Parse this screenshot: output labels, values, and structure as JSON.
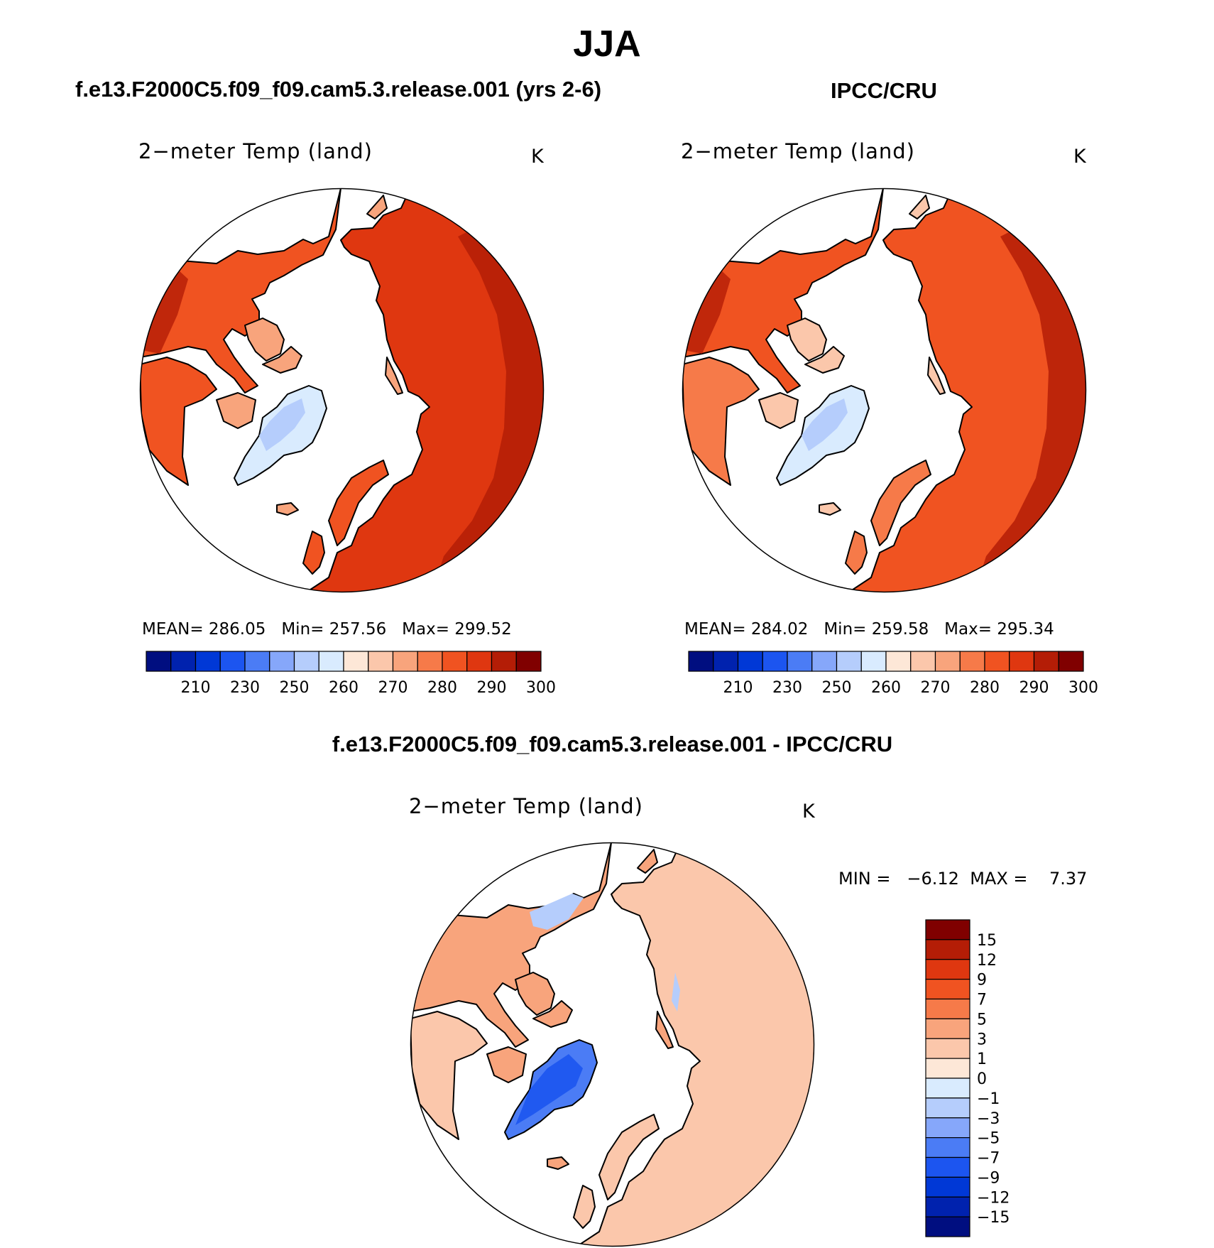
{
  "figure": {
    "title": "JJA"
  },
  "colors": {
    "abs_levels": [
      "#000e80",
      "#0022ae",
      "#0038d6",
      "#1c55f0",
      "#4b7cf5",
      "#86a7fa",
      "#b5cdfc",
      "#d9ebfe",
      "#fde7d7",
      "#fbc7ab",
      "#f8a47c",
      "#f67a49",
      "#f05321",
      "#df3710",
      "#b41d06",
      "#800000"
    ],
    "diff_levels": [
      "#000e80",
      "#0022ae",
      "#0038d6",
      "#1c55f0",
      "#4b7cf5",
      "#86a7fa",
      "#b5cdfc",
      "#d9ebfe",
      "#fde7d7",
      "#fbc7ab",
      "#f8a47c",
      "#f67a49",
      "#f05321",
      "#df3710",
      "#b41d06",
      "#800000"
    ],
    "coast": "#000000"
  },
  "panels": [
    {
      "case": "f.e13.F2000C5.f09_f09.cam5.3.release.001 (yrs 2-6)",
      "variable": "2−meter Temp (land)",
      "units": "K",
      "stats": {
        "mean_label": "MEAN=",
        "mean": "286.05",
        "min_label": "Min=",
        "min": "257.56",
        "max_label": "Max=",
        "max": "299.52"
      },
      "colorbar": {
        "ticks": [
          "210",
          "230",
          "250",
          "260",
          "270",
          "280",
          "290",
          "300"
        ]
      }
    },
    {
      "case": "IPCC/CRU",
      "variable": "2−meter Temp (land)",
      "units": "K",
      "stats": {
        "mean_label": "MEAN=",
        "mean": "284.02",
        "min_label": "Min=",
        "min": "259.58",
        "max_label": "Max=",
        "max": "295.34"
      },
      "colorbar": {
        "ticks": [
          "210",
          "230",
          "250",
          "260",
          "270",
          "280",
          "290",
          "300"
        ]
      }
    },
    {
      "case": "f.e13.F2000C5.f09_f09.cam5.3.release.001 - IPCC/CRU",
      "variable": "2−meter Temp (land)",
      "units": "K",
      "stats": {
        "min_label": "MIN =",
        "min": "−6.12",
        "max_label": "MAX =",
        "max": "7.37"
      },
      "colorbar": {
        "ticks": [
          "15",
          "12",
          "9",
          "7",
          "5",
          "3",
          "1",
          "0",
          "−1",
          "−3",
          "−5",
          "−7",
          "−9",
          "−12",
          "−15"
        ]
      }
    }
  ],
  "map_data": {
    "projection": "north polar stereographic",
    "season": "JJA",
    "field": "2-meter temperature over land",
    "color_level_index": {
      "model": {
        "europe_siberia": 13,
        "north_america_south": 12,
        "boreal": 12,
        "greenland": 7,
        "arctic_islands": 10
      },
      "obs": {
        "europe_siberia": 12,
        "north_america_south": 12,
        "boreal": 11,
        "greenland": 7,
        "arctic_islands": 9
      },
      "diff": {
        "siberia": 9,
        "alaska_north": 6,
        "canada_south": 10,
        "greenland": 4,
        "europe": 9
      }
    }
  }
}
